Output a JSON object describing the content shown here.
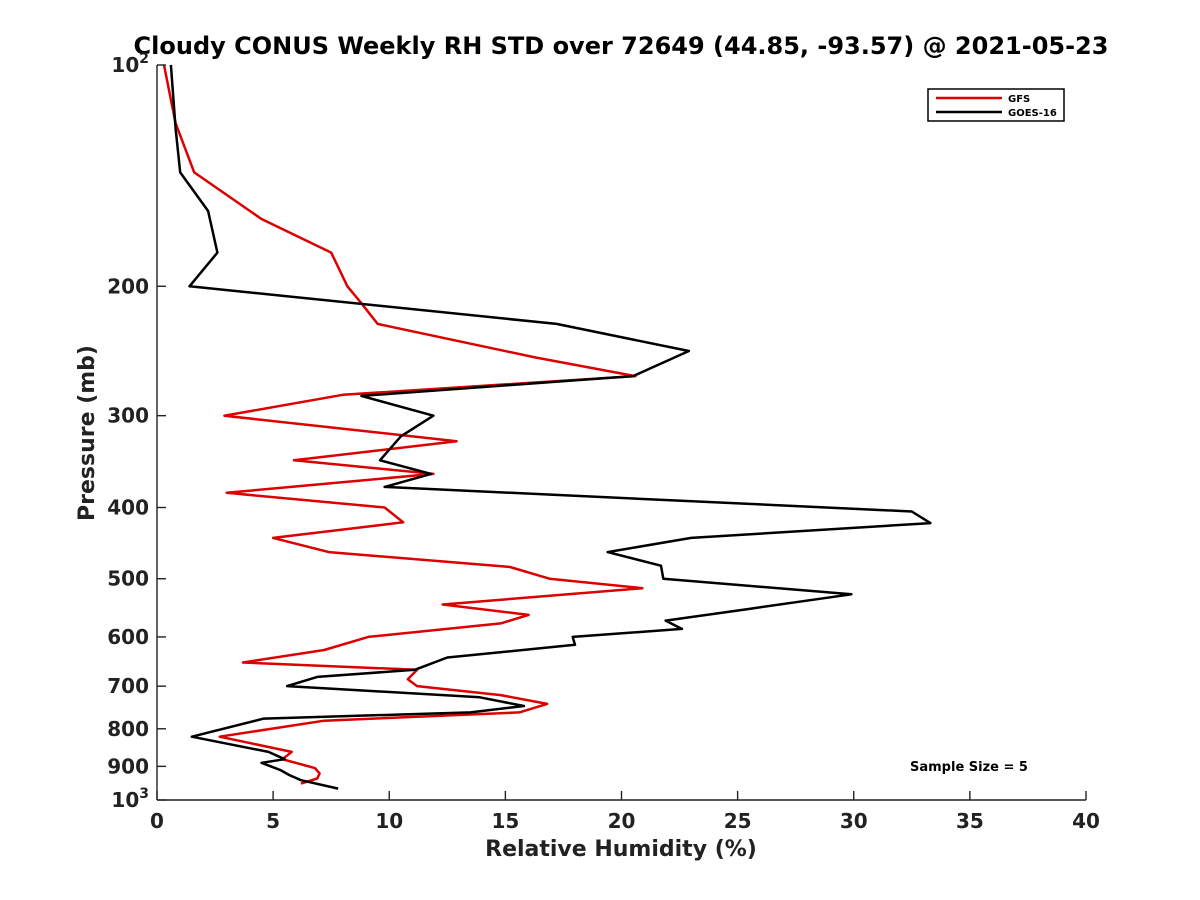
{
  "chart_data": {
    "type": "line",
    "title": "Cloudy CONUS Weekly RH STD over 72649 (44.85, -93.57) @ 2021-05-23",
    "xlabel": "Relative Humidity (%)",
    "ylabel": "Pressure (mb)",
    "xlim": [
      0,
      40
    ],
    "ylim": [
      100,
      1000
    ],
    "y_scale": "log",
    "y_reversed": true,
    "grid": false,
    "x_ticks": [
      "0",
      "5",
      "10",
      "15",
      "20",
      "25",
      "30",
      "35",
      "40"
    ],
    "y_ticks": [
      {
        "value": 100,
        "base": "10",
        "exp": "2"
      },
      {
        "value": 200,
        "label": "200"
      },
      {
        "value": 300,
        "label": "300"
      },
      {
        "value": 400,
        "label": "400"
      },
      {
        "value": 500,
        "label": "500"
      },
      {
        "value": 600,
        "label": "600"
      },
      {
        "value": 700,
        "label": "700"
      },
      {
        "value": 800,
        "label": "800"
      },
      {
        "value": 900,
        "label": "900"
      },
      {
        "value": 1000,
        "base": "10",
        "exp": "3"
      }
    ],
    "legend_position": "top-right",
    "annotation": "Sample Size = 5",
    "series": [
      {
        "name": "GFS",
        "color": "#dd0000",
        "points": [
          [
            0.3,
            100
          ],
          [
            0.8,
            120
          ],
          [
            1.6,
            140
          ],
          [
            4.5,
            162
          ],
          [
            7.5,
            180
          ],
          [
            8.2,
            200
          ],
          [
            8.8,
            211
          ],
          [
            9.5,
            225
          ],
          [
            16.3,
            250
          ],
          [
            20.6,
            265
          ],
          [
            8.0,
            281
          ],
          [
            2.9,
            300
          ],
          [
            12.9,
            325
          ],
          [
            5.9,
            345
          ],
          [
            11.9,
            360
          ],
          [
            3.0,
            382
          ],
          [
            9.8,
            400
          ],
          [
            10.6,
            419
          ],
          [
            5.0,
            440
          ],
          [
            7.4,
            460
          ],
          [
            15.2,
            482
          ],
          [
            16.9,
            500
          ],
          [
            20.9,
            515
          ],
          [
            12.3,
            542
          ],
          [
            16.0,
            560
          ],
          [
            14.8,
            575
          ],
          [
            9.1,
            600
          ],
          [
            7.2,
            625
          ],
          [
            3.7,
            650
          ],
          [
            11.2,
            665
          ],
          [
            10.8,
            685
          ],
          [
            11.2,
            700
          ],
          [
            14.8,
            720
          ],
          [
            16.8,
            740
          ],
          [
            15.6,
            760
          ],
          [
            7.2,
            780
          ],
          [
            2.7,
            820
          ],
          [
            5.8,
            860
          ],
          [
            5.4,
            880
          ],
          [
            6.8,
            905
          ],
          [
            7.0,
            920
          ],
          [
            6.9,
            935
          ],
          [
            6.2,
            950
          ]
        ]
      },
      {
        "name": "GOES-16",
        "color": "#000000",
        "points": [
          [
            0.6,
            100
          ],
          [
            0.8,
            122
          ],
          [
            1.0,
            140
          ],
          [
            2.2,
            158
          ],
          [
            2.6,
            180
          ],
          [
            1.4,
            200
          ],
          [
            17.2,
            225
          ],
          [
            22.9,
            245
          ],
          [
            20.5,
            265
          ],
          [
            8.8,
            282
          ],
          [
            11.9,
            300
          ],
          [
            10.5,
            320
          ],
          [
            9.6,
            345
          ],
          [
            11.8,
            360
          ],
          [
            9.8,
            375
          ],
          [
            32.5,
            405
          ],
          [
            33.3,
            420
          ],
          [
            23.0,
            440
          ],
          [
            19.4,
            460
          ],
          [
            21.7,
            480
          ],
          [
            21.8,
            500
          ],
          [
            29.9,
            525
          ],
          [
            25.4,
            550
          ],
          [
            21.9,
            570
          ],
          [
            22.6,
            585
          ],
          [
            17.9,
            600
          ],
          [
            18.0,
            615
          ],
          [
            12.5,
            640
          ],
          [
            11.1,
            665
          ],
          [
            6.9,
            680
          ],
          [
            5.6,
            700
          ],
          [
            13.9,
            725
          ],
          [
            15.8,
            745
          ],
          [
            13.5,
            760
          ],
          [
            4.6,
            775
          ],
          [
            1.5,
            820
          ],
          [
            4.8,
            860
          ],
          [
            5.5,
            880
          ],
          [
            4.5,
            890
          ],
          [
            5.3,
            910
          ],
          [
            5.7,
            925
          ],
          [
            6.2,
            940
          ],
          [
            7.8,
            965
          ]
        ]
      }
    ]
  }
}
